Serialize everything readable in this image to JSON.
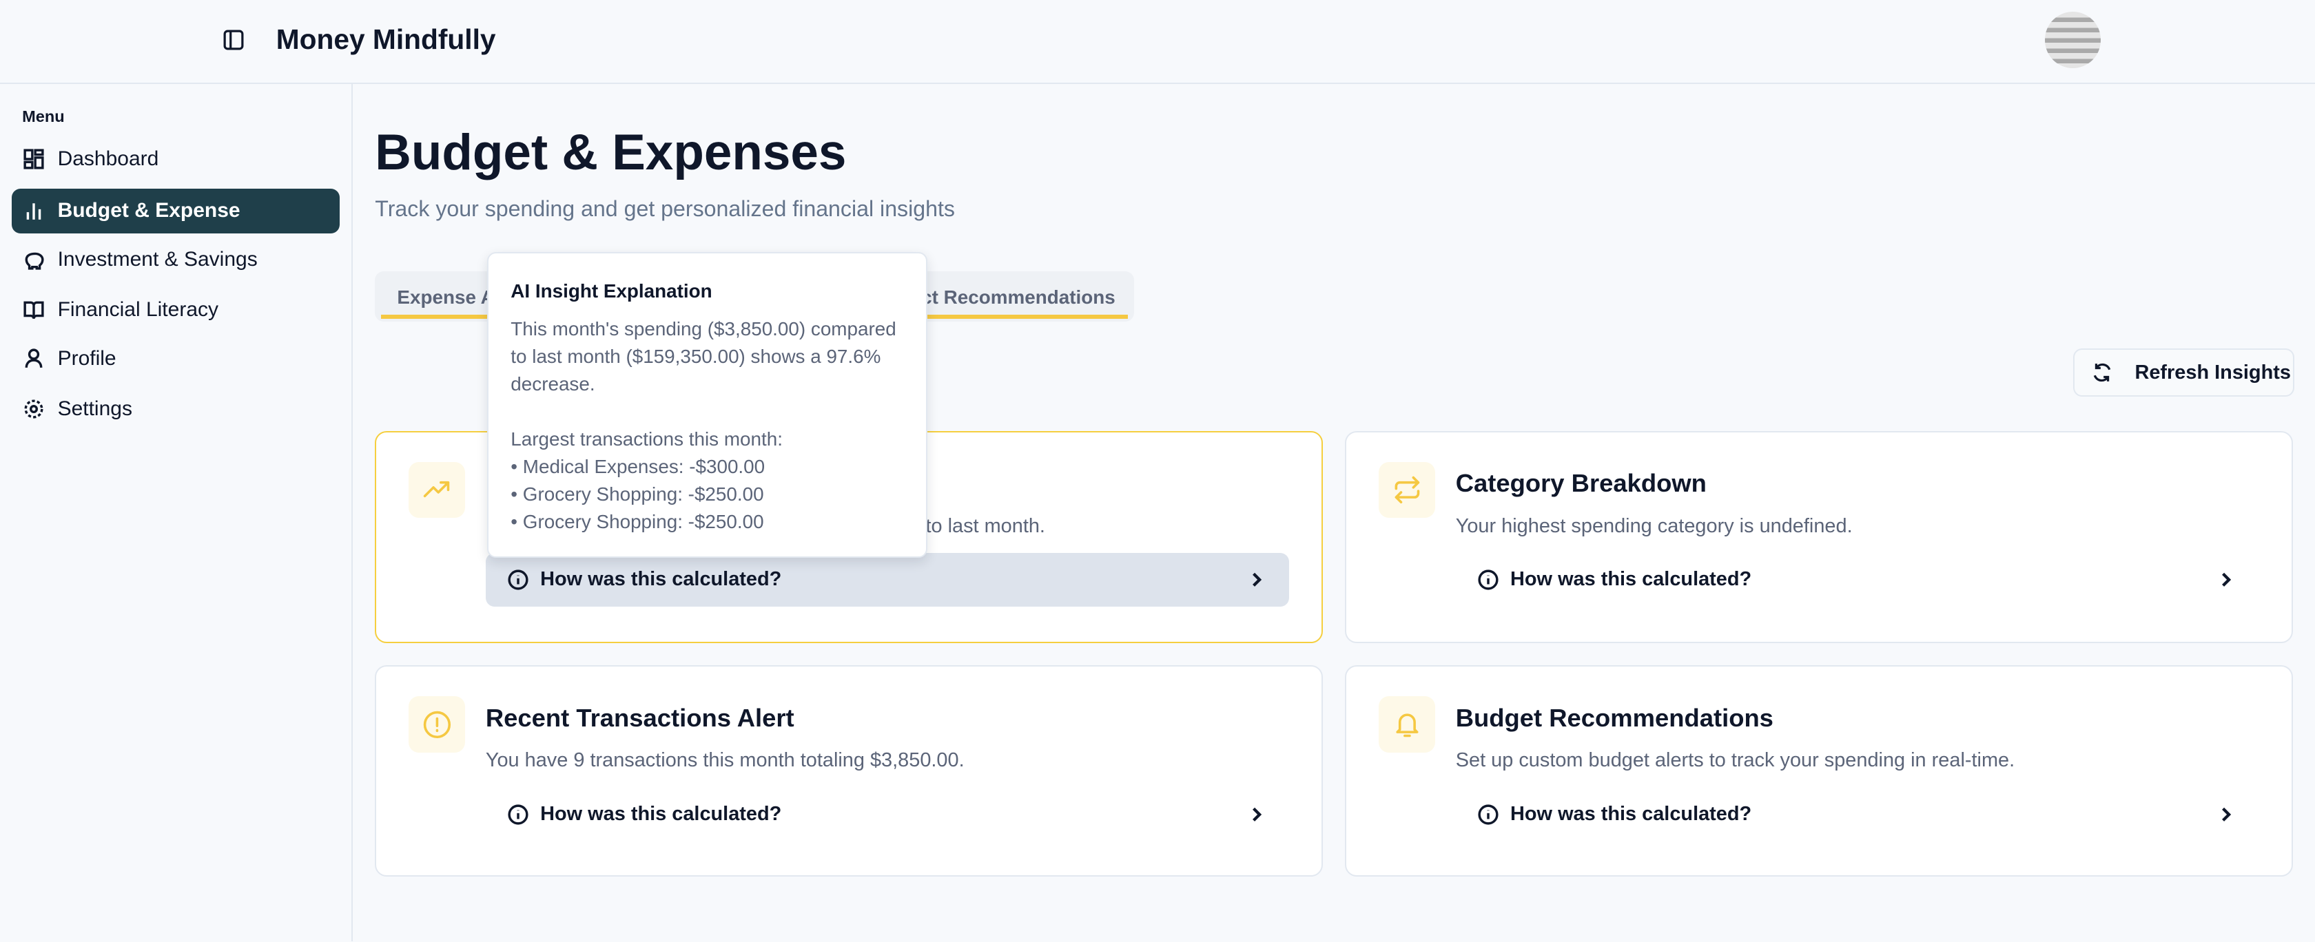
{
  "app": {
    "title": "Money Mindfully"
  },
  "sidebar": {
    "heading": "Menu",
    "items": [
      {
        "label": "Dashboard",
        "icon": "dashboard-icon"
      },
      {
        "label": "Budget & Expense",
        "icon": "bar-chart-icon",
        "active": true
      },
      {
        "label": "Investment & Savings",
        "icon": "piggy-bank-icon"
      },
      {
        "label": "Financial Literacy",
        "icon": "book-icon"
      },
      {
        "label": "Profile",
        "icon": "user-icon"
      },
      {
        "label": "Settings",
        "icon": "gear-icon"
      }
    ]
  },
  "page": {
    "title": "Budget & Expenses",
    "subtitle": "Track your spending and get personalized financial insights"
  },
  "tabs": [
    {
      "label": "Expense A"
    },
    {
      "label": "ct Recommendations"
    }
  ],
  "refresh_label": "Refresh Insights",
  "cards": [
    {
      "title": "",
      "description": "to last month.",
      "calc_label": "How was this calculated?",
      "icon": "trending-up-icon"
    },
    {
      "title": "Category Breakdown",
      "description": "Your highest spending category is undefined.",
      "calc_label": "How was this calculated?",
      "icon": "arrows-swap-icon"
    },
    {
      "title": "Recent Transactions Alert",
      "description": "You have 9 transactions this month totaling $3,850.00.",
      "calc_label": "How was this calculated?",
      "icon": "alert-circle-icon"
    },
    {
      "title": "Budget Recommendations",
      "description": "Set up custom budget alerts to track your spending in real-time.",
      "calc_label": "How was this calculated?",
      "icon": "bell-icon"
    }
  ],
  "tooltip": {
    "title": "AI Insight Explanation",
    "body": "This month's spending ($3,850.00) compared to last month ($159,350.00) shows a 97.6% decrease.",
    "list_heading": "Largest transactions this month:",
    "items": [
      "• Medical Expenses: -$300.00",
      "• Grocery Shopping: -$250.00",
      "• Grocery Shopping: -$250.00"
    ]
  },
  "colors": {
    "accent": "#f5c842",
    "sidebar_active": "#1f3f4a"
  }
}
